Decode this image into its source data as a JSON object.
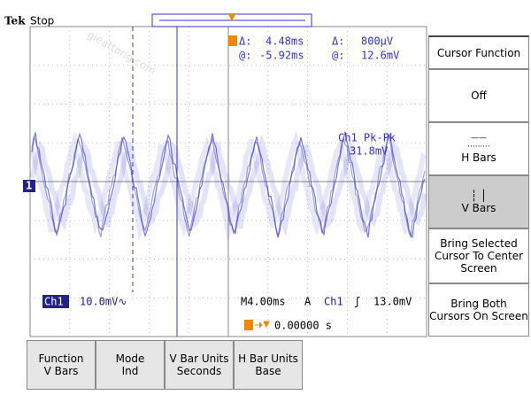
{
  "header": {
    "brand": "Tek",
    "status": "Stop"
  },
  "readout": {
    "delta_t_label": "Δ:",
    "delta_t": "4.48ms",
    "delta_v_label": "Δ:",
    "delta_v": "800µV",
    "at_t_label": "@:",
    "at_t": "-5.92ms",
    "at_v_label": "@:",
    "at_v": "12.6mV"
  },
  "measurement": {
    "label": "Ch1 Pk-Pk",
    "value": "31.8mV"
  },
  "channel_marker": "1",
  "status_bar": {
    "channel": "Ch1",
    "scale": "10.0mV∿",
    "timebase": "M4.00ms",
    "mode": "A",
    "trigger_source": "Ch1",
    "trigger_slope": "ʃ",
    "trigger_level": "13.0mV",
    "trigger_position": "0.00000 s"
  },
  "watermark": "gieattong.com",
  "side_menu": {
    "title": "Cursor Function",
    "buttons": [
      "Off",
      "H Bars",
      "V Bars",
      "Bring Selected Cursor To Center Screen",
      "Bring Both Cursors On Screen"
    ]
  },
  "bottom_menu": [
    {
      "title": "Function",
      "value": "V Bars"
    },
    {
      "title": "Mode",
      "value": "Ind"
    },
    {
      "title": "V Bar Units",
      "value": "Seconds"
    },
    {
      "title": "H Bar Units",
      "value": "Base"
    }
  ]
}
